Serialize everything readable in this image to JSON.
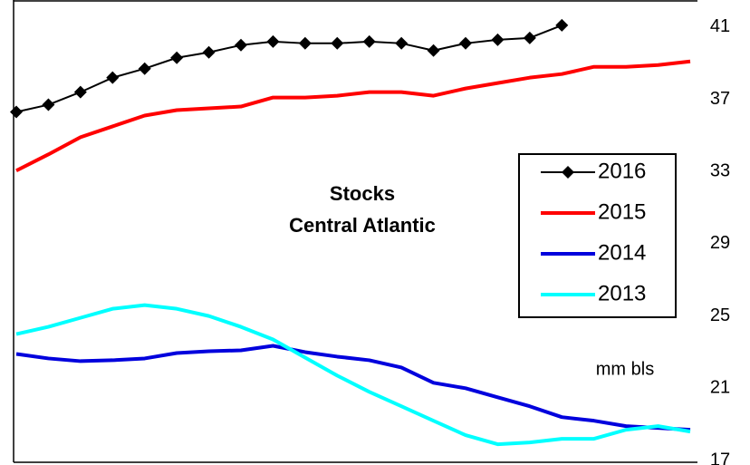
{
  "chart_data": {
    "type": "line",
    "title": "Stocks",
    "subtitle": "Central Atlantic",
    "unit_label": "mm bls",
    "categories": [
      null,
      null,
      null,
      null,
      null,
      null,
      null,
      null,
      null,
      null,
      null,
      null,
      null,
      null,
      null,
      null,
      null,
      null,
      null,
      null,
      null,
      null
    ],
    "series": [
      {
        "name": "2016",
        "color": "#000000",
        "marker": "diamond",
        "values": [
          36.3,
          36.7,
          37.4,
          38.2,
          38.7,
          39.3,
          39.6,
          40.0,
          40.2,
          40.1,
          40.1,
          40.2,
          40.1,
          39.7,
          40.1,
          40.3,
          40.4,
          41.1,
          null,
          null,
          null,
          null
        ]
      },
      {
        "name": "2015",
        "color": "#ff0000",
        "values": [
          33.05,
          33.95,
          34.9,
          35.5,
          36.1,
          36.4,
          36.5,
          36.6,
          37.1,
          37.1,
          37.2,
          37.4,
          37.4,
          37.2,
          37.6,
          37.9,
          38.2,
          38.4,
          38.8,
          38.8,
          38.9,
          39.1
        ]
      },
      {
        "name": "2014",
        "color": "#0000dd",
        "values": [
          22.9,
          22.65,
          22.5,
          22.55,
          22.65,
          22.95,
          23.05,
          23.1,
          23.35,
          23.0,
          22.75,
          22.55,
          22.15,
          21.3,
          21.0,
          20.5,
          20.0,
          19.4,
          19.2,
          18.9,
          18.8,
          18.7
        ]
      },
      {
        "name": "2013",
        "color": "#00ffff",
        "values": [
          24.0,
          24.4,
          24.9,
          25.4,
          25.6,
          25.4,
          25.0,
          24.4,
          23.7,
          22.7,
          21.7,
          20.8,
          20.0,
          19.2,
          18.4,
          17.9,
          18.0,
          18.2,
          18.2,
          18.7,
          18.9,
          18.6
        ]
      }
    ],
    "ylim": [
      17,
      42.5
    ],
    "yticks": [
      17,
      21,
      25,
      29,
      33,
      37,
      41
    ],
    "grid": false
  }
}
